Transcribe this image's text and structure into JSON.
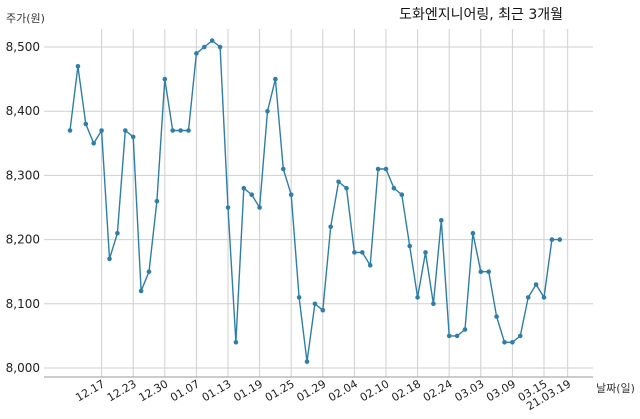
{
  "chart_data": {
    "type": "line",
    "title": "도화엔지니어링, 최근 3개월",
    "ylabel": "주가(원)",
    "xlabel": "날짜(일)",
    "ylim": [
      8000,
      8510
    ],
    "yticks": [
      8000,
      8100,
      8200,
      8300,
      8400,
      8500
    ],
    "ytick_labels": [
      "8,000",
      "8,100",
      "8,200",
      "8,300",
      "8,400",
      "8,500"
    ],
    "grid": true,
    "line_color": "#2e7ea6",
    "x_tick_labels": [
      "12.17",
      "12.23",
      "12.30",
      "01.07",
      "01.13",
      "01.19",
      "01.25",
      "01.29",
      "02.04",
      "02.10",
      "02.18",
      "02.24",
      "03.03",
      "03.09",
      "03.15",
      "21.03.19"
    ],
    "x_tick_indices": [
      4,
      8,
      12,
      16,
      20,
      24,
      28,
      32,
      36,
      40,
      44,
      48,
      52,
      56,
      60,
      63
    ],
    "values": [
      8370,
      8470,
      8380,
      8350,
      8370,
      8170,
      8210,
      8370,
      8360,
      8120,
      8150,
      8260,
      8450,
      8370,
      8370,
      8370,
      8490,
      8500,
      8510,
      8500,
      8250,
      8040,
      8280,
      8270,
      8250,
      8400,
      8450,
      8310,
      8270,
      8110,
      8010,
      8100,
      8090,
      8220,
      8290,
      8280,
      8180,
      8180,
      8160,
      8310,
      8310,
      8280,
      8270,
      8190,
      8110,
      8180,
      8100,
      8230,
      8050,
      8050,
      8060,
      8210,
      8150,
      8150,
      8080,
      8040,
      8040,
      8050,
      8110,
      8130,
      8110,
      8200,
      8200
    ]
  }
}
